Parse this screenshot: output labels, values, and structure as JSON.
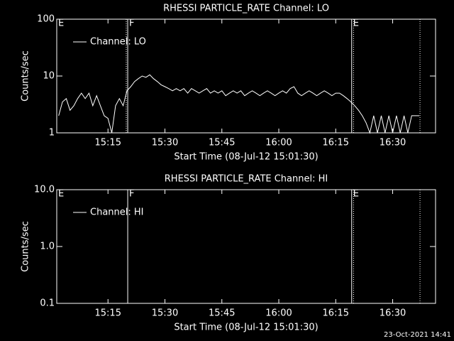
{
  "chart_data": [
    {
      "type": "line",
      "title": "RHESSI PARTICLE_RATE Channel: LO",
      "x_label": "Start Time (08-Jul-12 15:01:30)",
      "y_label": "Counts/sec",
      "log_scale": true,
      "xlim": [
        1.5,
        101.3
      ],
      "ylim": [
        1,
        100
      ],
      "yticks": [
        1,
        10,
        100
      ],
      "xticks": [
        {
          "value": 15,
          "label": "15:15"
        },
        {
          "value": 30,
          "label": "15:30"
        },
        {
          "value": 45,
          "label": "15:45"
        },
        {
          "value": 60,
          "label": "16:00"
        },
        {
          "value": 75,
          "label": "16:15"
        },
        {
          "value": 90,
          "label": "16:30"
        }
      ],
      "vlines": [
        {
          "x": 1.5,
          "label": "E"
        },
        {
          "x": 19.8,
          "style": "dotted"
        },
        {
          "x": 20.2,
          "style": "solid",
          "label": "F"
        },
        {
          "x": 79.2,
          "style": "solid",
          "label": "E"
        },
        {
          "x": 79.7,
          "style": "dotted"
        },
        {
          "x": 97.2,
          "style": "dotted"
        }
      ],
      "x": [
        2,
        3,
        4,
        5,
        6,
        7,
        8,
        9,
        10,
        11,
        12,
        13,
        14,
        15,
        16,
        17,
        18,
        19,
        20,
        21,
        22,
        23,
        24,
        25,
        26,
        27,
        28,
        29,
        30,
        31,
        32,
        33,
        34,
        35,
        36,
        37,
        38,
        39,
        40,
        41,
        42,
        43,
        44,
        45,
        46,
        47,
        48,
        49,
        50,
        51,
        52,
        53,
        54,
        55,
        56,
        57,
        58,
        59,
        60,
        61,
        62,
        63,
        64,
        65,
        66,
        67,
        68,
        69,
        70,
        71,
        72,
        73,
        74,
        75,
        76,
        77,
        78,
        79,
        80,
        81,
        82,
        83,
        84,
        85,
        86,
        87,
        88,
        89,
        90,
        91,
        92,
        93,
        94,
        95,
        96,
        97
      ],
      "series": [
        {
          "name": "Channel: LO",
          "color": "#ffffff",
          "values": [
            2,
            3.5,
            4,
            2.5,
            3,
            4,
            5,
            4,
            5,
            3,
            4.5,
            3,
            2,
            1.8,
            1,
            3,
            4,
            3,
            5.5,
            6.5,
            8,
            9,
            10,
            9.5,
            10.5,
            9,
            8,
            7,
            6.5,
            6,
            5.5,
            6,
            5.5,
            6,
            5,
            6,
            5.5,
            5,
            5.5,
            6,
            5,
            5.5,
            5,
            5.5,
            4.5,
            5,
            5.5,
            5,
            5.5,
            4.5,
            5,
            5.5,
            5,
            4.5,
            5,
            5.5,
            5,
            4.5,
            5,
            5.5,
            5,
            6,
            6.5,
            5,
            4.5,
            5,
            5.5,
            5,
            4.5,
            5,
            5.5,
            5,
            4.5,
            5,
            5,
            4.5,
            4,
            3.5,
            3,
            2.5,
            2,
            1.5,
            1,
            2,
            1,
            2,
            1,
            2,
            1,
            2,
            1,
            2,
            1,
            2,
            2,
            2
          ]
        }
      ]
    },
    {
      "type": "line",
      "title": "RHESSI PARTICLE_RATE Channel: HI",
      "x_label": "Start Time (08-Jul-12 15:01:30)",
      "y_label": "Counts/sec",
      "log_scale": true,
      "xlim": [
        1.5,
        101.3
      ],
      "ylim": [
        0.1,
        10
      ],
      "yticks": [
        0.1,
        {
          "value": 1,
          "label": "1.0"
        },
        {
          "value": 10,
          "label": "10.0"
        }
      ],
      "xticks": [
        {
          "value": 15,
          "label": "15:15"
        },
        {
          "value": 30,
          "label": "15:30"
        },
        {
          "value": 45,
          "label": "15:45"
        },
        {
          "value": 60,
          "label": "16:00"
        },
        {
          "value": 75,
          "label": "16:15"
        },
        {
          "value": 90,
          "label": "16:30"
        }
      ],
      "vlines": [
        {
          "x": 1.5,
          "label": "E"
        },
        {
          "x": 20.2,
          "style": "solid",
          "label": "F"
        },
        {
          "x": 79.2,
          "style": "solid",
          "label": "E"
        },
        {
          "x": 79.7,
          "style": "dotted"
        },
        {
          "x": 97.2,
          "style": "dotted"
        }
      ],
      "x": [],
      "series": [
        {
          "name": "Channel: HI",
          "color": "#ffffff",
          "values": []
        }
      ]
    }
  ],
  "footer": "23-Oct-2021 14:41"
}
